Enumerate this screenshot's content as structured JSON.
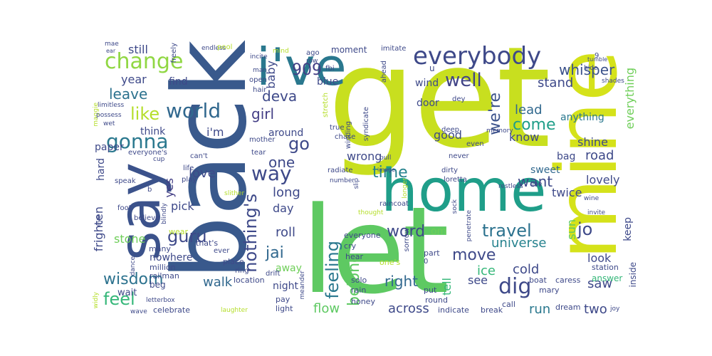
{
  "colors": {
    "background": "#ffffff",
    "palette": [
      "#440154",
      "#482878",
      "#3e4989",
      "#31688e",
      "#26828e",
      "#1f9e89",
      "#35b779",
      "#6ece58",
      "#b5de2b",
      "#d5e21a"
    ]
  },
  "words": [
    {
      "text": "get",
      "color": "#c8df1f"
    },
    {
      "text": "back",
      "color": "#39598c"
    },
    {
      "text": "let",
      "color": "#5ec962"
    },
    {
      "text": "mine",
      "color": "#d5e21a"
    },
    {
      "text": "home",
      "color": "#1f9e89"
    },
    {
      "text": "say",
      "color": "#3b528b"
    },
    {
      "text": "i've",
      "color": "#2a788e"
    },
    {
      "text": "everybody",
      "color": "#3e4989"
    },
    {
      "text": "change",
      "color": "#90d743"
    },
    {
      "text": "909",
      "color": "#433e85"
    },
    {
      "text": "whisper",
      "color": "#3b528b"
    },
    {
      "text": "well",
      "color": "#414487"
    },
    {
      "text": "world",
      "color": "#31688e"
    },
    {
      "text": "like",
      "color": "#b5de2b"
    },
    {
      "text": "leave",
      "color": "#2c728e"
    },
    {
      "text": "gonna",
      "color": "#2a788e"
    },
    {
      "text": "deva",
      "color": "#3e4989"
    },
    {
      "text": "girl",
      "color": "#433e85"
    },
    {
      "text": "go",
      "color": "#3e4989"
    },
    {
      "text": "one",
      "color": "#3e4989"
    },
    {
      "text": "we're",
      "color": "#3b528b"
    },
    {
      "text": "come",
      "color": "#1f9e89"
    },
    {
      "text": "lead",
      "color": "#31688e"
    },
    {
      "text": "way",
      "color": "#3e4989"
    },
    {
      "text": "time",
      "color": "#26828e"
    },
    {
      "text": "want",
      "color": "#3e4989"
    },
    {
      "text": "travel",
      "color": "#2c728e"
    },
    {
      "text": "dig",
      "color": "#3e4989"
    },
    {
      "text": "guru",
      "color": "#3e4989"
    },
    {
      "text": "love",
      "color": "#3e4989"
    },
    {
      "text": "nothing's",
      "color": "#3e4989"
    },
    {
      "text": "feeling",
      "color": "#2a788e"
    },
    {
      "text": "belong",
      "color": "#5ec962"
    },
    {
      "text": "word",
      "color": "#3e4989"
    },
    {
      "text": "move",
      "color": "#3e4989"
    },
    {
      "text": "universe",
      "color": "#26828e"
    },
    {
      "text": "wisdom",
      "color": "#2c728e"
    },
    {
      "text": "feel",
      "color": "#35b779"
    },
    {
      "text": "jai",
      "color": "#31688e"
    },
    {
      "text": "right",
      "color": "#31688e"
    },
    {
      "text": "walk",
      "color": "#31688e"
    },
    {
      "text": "jo",
      "color": "#3e4989"
    },
    {
      "text": "saw",
      "color": "#3e4989"
    },
    {
      "text": "run",
      "color": "#2a788e"
    },
    {
      "text": "across",
      "color": "#3e4989"
    },
    {
      "text": "two",
      "color": "#3e4989"
    },
    {
      "text": "cold",
      "color": "#3e4989"
    },
    {
      "text": "ice",
      "color": "#35b779"
    },
    {
      "text": "flow",
      "color": "#5ec962"
    },
    {
      "text": "see",
      "color": "#3e4989"
    },
    {
      "text": "tell",
      "color": "#35b779"
    },
    {
      "text": "yes",
      "color": "#433e85"
    },
    {
      "text": "pick",
      "color": "#3e4989"
    },
    {
      "text": "stone",
      "color": "#6ece58"
    },
    {
      "text": "still",
      "color": "#3e4989"
    },
    {
      "text": "year",
      "color": "#3e4989"
    },
    {
      "text": "find",
      "color": "#3e4989"
    },
    {
      "text": "baby",
      "color": "#3e4989"
    },
    {
      "text": "door",
      "color": "#3e4989"
    },
    {
      "text": "wind",
      "color": "#3e4989"
    },
    {
      "text": "blue",
      "color": "#3e4989"
    },
    {
      "text": "moment",
      "color": "#3e4989"
    },
    {
      "text": "stand",
      "color": "#3e4989"
    },
    {
      "text": "anything",
      "color": "#2a788e"
    },
    {
      "text": "everything",
      "color": "#6ece58"
    },
    {
      "text": "shine",
      "color": "#3e4989"
    },
    {
      "text": "road",
      "color": "#3e4989"
    },
    {
      "text": "lovely",
      "color": "#3e4989"
    },
    {
      "text": "bag",
      "color": "#3e4989"
    },
    {
      "text": "sweet",
      "color": "#31688e"
    },
    {
      "text": "twice",
      "color": "#3e4989"
    },
    {
      "text": "sun",
      "color": "#5ec962"
    },
    {
      "text": "keep",
      "color": "#3e4989"
    },
    {
      "text": "look",
      "color": "#3e4989"
    },
    {
      "text": "inside",
      "color": "#3e4989"
    },
    {
      "text": "good",
      "color": "#3e4989"
    },
    {
      "text": "know",
      "color": "#3e4989"
    },
    {
      "text": "wrong",
      "color": "#3e4989"
    },
    {
      "text": "long",
      "color": "#3e4989"
    },
    {
      "text": "day",
      "color": "#3e4989"
    },
    {
      "text": "roll",
      "color": "#3e4989"
    },
    {
      "text": "night",
      "color": "#3e4989"
    },
    {
      "text": "away",
      "color": "#6ece58"
    },
    {
      "text": "around",
      "color": "#3e4989"
    },
    {
      "text": "i'm",
      "color": "#3e4989"
    },
    {
      "text": "think",
      "color": "#3e4989"
    },
    {
      "text": "paper",
      "color": "#3e4989"
    },
    {
      "text": "hard",
      "color": "#3e4989"
    },
    {
      "text": "frighten",
      "color": "#3e4989"
    },
    {
      "text": "om",
      "color": "#6ece58"
    },
    {
      "text": "answer",
      "color": "#35b779"
    },
    {
      "text": "station",
      "color": "#3e4989"
    },
    {
      "text": "nowhere",
      "color": "#3e4989"
    },
    {
      "text": "million",
      "color": "#3e4989"
    },
    {
      "text": "railman",
      "color": "#3e4989"
    },
    {
      "text": "beg",
      "color": "#3e4989"
    },
    {
      "text": "wait",
      "color": "#3e4989"
    },
    {
      "text": "celebrate",
      "color": "#3e4989"
    },
    {
      "text": "pay",
      "color": "#3e4989"
    },
    {
      "text": "light",
      "color": "#3e4989"
    },
    {
      "text": "honey",
      "color": "#3e4989"
    },
    {
      "text": "indicate",
      "color": "#3e4989"
    },
    {
      "text": "break",
      "color": "#3e4989"
    },
    {
      "text": "call",
      "color": "#3e4989"
    },
    {
      "text": "dream",
      "color": "#3e4989"
    },
    {
      "text": "rain",
      "color": "#3e4989"
    },
    {
      "text": "solo",
      "color": "#3e4989"
    },
    {
      "text": "put",
      "color": "#3e4989"
    },
    {
      "text": "round",
      "color": "#3e4989"
    },
    {
      "text": "mary",
      "color": "#3e4989"
    },
    {
      "text": "boat",
      "color": "#3e4989"
    },
    {
      "text": "caress",
      "color": "#3e4989"
    },
    {
      "text": "location",
      "color": "#3e4989"
    },
    {
      "text": "place",
      "color": "#3e4989"
    },
    {
      "text": "ring",
      "color": "#3e4989"
    },
    {
      "text": "drift",
      "color": "#3e4989"
    },
    {
      "text": "everyone",
      "color": "#3e4989"
    },
    {
      "text": "cry",
      "color": "#3e4989"
    },
    {
      "text": "sorrow",
      "color": "#3e4989"
    },
    {
      "text": "hear",
      "color": "#3e4989"
    },
    {
      "text": "one's",
      "color": "#b5de2b"
    },
    {
      "text": "part",
      "color": "#3e4989"
    },
    {
      "text": "laughter",
      "color": "#b5de2b"
    },
    {
      "text": "letterbox",
      "color": "#3e4989"
    },
    {
      "text": "widly",
      "color": "#b5de2b"
    },
    {
      "text": "wave",
      "color": "#3e4989"
    },
    {
      "text": "joy",
      "color": "#3e4989"
    },
    {
      "text": "meander",
      "color": "#3e4989"
    },
    {
      "text": "dance",
      "color": "#3e4989"
    },
    {
      "text": "ever",
      "color": "#3e4989"
    },
    {
      "text": "many",
      "color": "#3e4989"
    },
    {
      "text": "that's",
      "color": "#3e4989"
    },
    {
      "text": "wear",
      "color": "#b5de2b"
    },
    {
      "text": "believe",
      "color": "#3e4989"
    },
    {
      "text": "foot",
      "color": "#3e4989"
    },
    {
      "text": "eye",
      "color": "#3e4989"
    },
    {
      "text": "blindly",
      "color": "#3e4989"
    },
    {
      "text": "slither",
      "color": "#b5de2b"
    },
    {
      "text": "play",
      "color": "#3e4989"
    },
    {
      "text": "speak",
      "color": "#3e4989"
    },
    {
      "text": "life",
      "color": "#3e4989"
    },
    {
      "text": "cup",
      "color": "#3e4989"
    },
    {
      "text": "can't",
      "color": "#3e4989"
    },
    {
      "text": "mother",
      "color": "#3e4989"
    },
    {
      "text": "tear",
      "color": "#3e4989"
    },
    {
      "text": "everyone's",
      "color": "#3e4989"
    },
    {
      "text": "maggie",
      "color": "#b5de2b"
    },
    {
      "text": "wet",
      "color": "#3e4989"
    },
    {
      "text": "possess",
      "color": "#3e4989"
    },
    {
      "text": "limitless",
      "color": "#3e4989"
    },
    {
      "text": "freely",
      "color": "#3e4989"
    },
    {
      "text": "mae",
      "color": "#3e4989"
    },
    {
      "text": "ear",
      "color": "#3e4989"
    },
    {
      "text": "endless",
      "color": "#3e4989"
    },
    {
      "text": "pool",
      "color": "#b5de2b"
    },
    {
      "text": "mind",
      "color": "#b5de2b"
    },
    {
      "text": "ago",
      "color": "#3e4989"
    },
    {
      "text": "row",
      "color": "#3e4989"
    },
    {
      "text": "imitate",
      "color": "#3e4989"
    },
    {
      "text": "incite",
      "color": "#3e4989"
    },
    {
      "text": "man",
      "color": "#3e4989"
    },
    {
      "text": "open",
      "color": "#3e4989"
    },
    {
      "text": "hair",
      "color": "#3e4989"
    },
    {
      "text": "fbi",
      "color": "#3e4989"
    },
    {
      "text": "ahead",
      "color": "#3e4989"
    },
    {
      "text": "stretch",
      "color": "#b5de2b"
    },
    {
      "text": "syndicate",
      "color": "#3e4989"
    },
    {
      "text": "winding",
      "color": "#3e4989"
    },
    {
      "text": "true",
      "color": "#3e4989"
    },
    {
      "text": "chase",
      "color": "#3e4989"
    },
    {
      "text": "deep",
      "color": "#3e4989"
    },
    {
      "text": "memory",
      "color": "#3e4989"
    },
    {
      "text": "dey",
      "color": "#3e4989"
    },
    {
      "text": "even",
      "color": "#3e4989"
    },
    {
      "text": "never",
      "color": "#3e4989"
    },
    {
      "text": "image",
      "color": "#3e4989"
    },
    {
      "text": "pull",
      "color": "#3e4989"
    },
    {
      "text": "radiate",
      "color": "#3e4989"
    },
    {
      "text": "number",
      "color": "#3e4989"
    },
    {
      "text": "slip",
      "color": "#3e4989"
    },
    {
      "text": "thought",
      "color": "#b5de2b"
    },
    {
      "text": "longer",
      "color": "#b5de2b"
    },
    {
      "text": "raincoat",
      "color": "#3e4989"
    },
    {
      "text": "dirty",
      "color": "#3e4989"
    },
    {
      "text": "loretta",
      "color": "#3e4989"
    },
    {
      "text": "sock",
      "color": "#3e4989"
    },
    {
      "text": "penetrate",
      "color": "#3e4989"
    },
    {
      "text": "restless",
      "color": "#3e4989"
    },
    {
      "text": "wine",
      "color": "#3e4989"
    },
    {
      "text": "invite",
      "color": "#3e4989"
    },
    {
      "text": "line",
      "color": "#3e4989"
    },
    {
      "text": "hide",
      "color": "#3e4989"
    },
    {
      "text": "tumble",
      "color": "#3e4989"
    },
    {
      "text": "shades",
      "color": "#3e4989"
    },
    {
      "text": "9",
      "color": "#3e4989"
    },
    {
      "text": "b",
      "color": "#3e4989"
    },
    {
      "text": "0",
      "color": "#3e4989"
    },
    {
      "text": "u",
      "color": "#3e4989"
    }
  ]
}
